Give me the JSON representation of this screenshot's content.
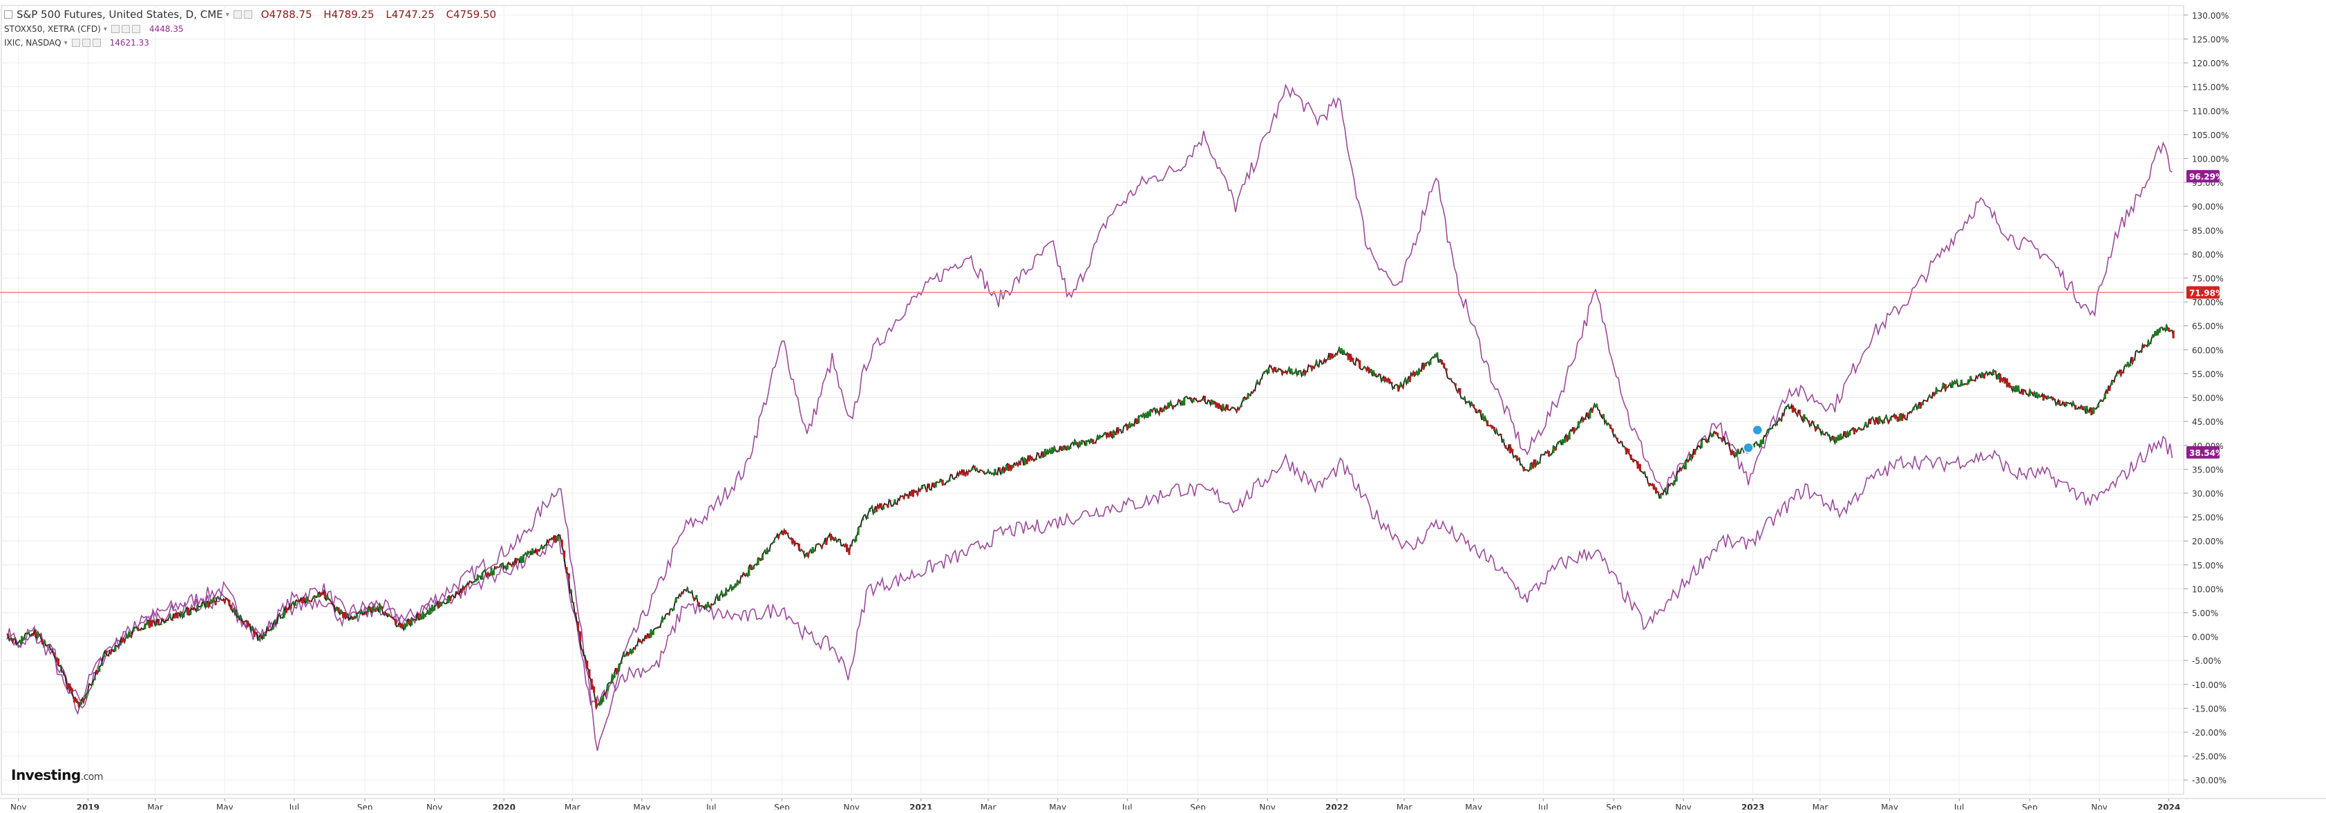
{
  "legend": {
    "main_title": "S&P 500 Futures, United States, D, CME",
    "ohlc": {
      "open": "O4788.75",
      "high": "H4789.25",
      "low": "L4747.25",
      "close": "C4759.50"
    },
    "series2_name": "STOXX50, XETRA (CFD)",
    "series2_value": "4448.35",
    "series3_name": "IXIC, NASDAQ",
    "series3_value": "14621.33"
  },
  "logo": {
    "brand": "Investing",
    "domain": ".com"
  },
  "colors": {
    "main_line": "#1a1a1a",
    "candle_up": "#1e7d1e",
    "candle_down": "#b71c1c",
    "compare_series": "#9b4a9b",
    "price_line": "#f08080",
    "badge_price": "#d32020",
    "badge_compare": "#8e1e8e",
    "grid": "#eeeeee",
    "marker": "#2e9fdc"
  },
  "chart_data": {
    "type": "line",
    "x_tick_labels": [
      "Nov",
      "2019",
      "Mar",
      "May",
      "Jul",
      "Sep",
      "Nov",
      "2020",
      "Mar",
      "May",
      "Jul",
      "Sep",
      "Nov",
      "2021",
      "Mar",
      "May",
      "Jul",
      "Sep",
      "Nov",
      "2022",
      "Mar",
      "May",
      "Jul",
      "Sep",
      "Nov",
      "2023",
      "Mar",
      "May",
      "Jul",
      "Sep",
      "Nov",
      "2024"
    ],
    "x_tick_dates": [
      "2018-11-01",
      "2019-01-01",
      "2019-03-01",
      "2019-05-01",
      "2019-07-01",
      "2019-09-01",
      "2019-11-01",
      "2020-01-01",
      "2020-03-01",
      "2020-05-01",
      "2020-07-01",
      "2020-09-01",
      "2020-11-01",
      "2021-01-01",
      "2021-03-01",
      "2021-05-01",
      "2021-07-01",
      "2021-09-01",
      "2021-11-01",
      "2022-01-01",
      "2022-03-01",
      "2022-05-01",
      "2022-07-01",
      "2022-09-01",
      "2022-11-01",
      "2023-01-01",
      "2023-03-01",
      "2023-05-01",
      "2023-07-01",
      "2023-09-01",
      "2023-11-01",
      "2024-01-01"
    ],
    "y_unit": "%",
    "ylim": [
      -33,
      132
    ],
    "y_ticks": [
      -30,
      -25,
      -20,
      -15,
      -10,
      -5,
      0,
      5,
      10,
      15,
      20,
      25,
      30,
      35,
      40,
      45,
      50,
      55,
      60,
      65,
      70,
      75,
      80,
      85,
      90,
      95,
      100,
      105,
      110,
      115,
      120,
      125,
      130
    ],
    "series": [
      {
        "name": "S&P 500 Futures, United States, D, CME",
        "style": "candles",
        "x": [
          "2018-10-22",
          "2018-11-01",
          "2018-11-15",
          "2018-12-01",
          "2018-12-10",
          "2018-12-24",
          "2019-01-15",
          "2019-02-15",
          "2019-03-15",
          "2019-04-30",
          "2019-05-31",
          "2019-06-30",
          "2019-07-26",
          "2019-08-15",
          "2019-09-15",
          "2019-10-03",
          "2019-11-15",
          "2019-12-15",
          "2020-01-15",
          "2020-02-19",
          "2020-03-09",
          "2020-03-23",
          "2020-04-15",
          "2020-05-15",
          "2020-06-08",
          "2020-06-26",
          "2020-07-31",
          "2020-09-02",
          "2020-09-23",
          "2020-10-15",
          "2020-10-30",
          "2020-11-15",
          "2020-12-15",
          "2021-01-15",
          "2021-02-15",
          "2021-03-04",
          "2021-04-15",
          "2021-05-12",
          "2021-06-15",
          "2021-07-15",
          "2021-08-15",
          "2021-09-02",
          "2021-10-04",
          "2021-11-02",
          "2021-12-01",
          "2022-01-03",
          "2022-02-01",
          "2022-02-24",
          "2022-03-29",
          "2022-04-15",
          "2022-05-20",
          "2022-06-16",
          "2022-07-15",
          "2022-08-16",
          "2022-09-15",
          "2022-10-12",
          "2022-11-15",
          "2022-11-30",
          "2022-12-15",
          "2023-01-05",
          "2023-02-02",
          "2023-03-13",
          "2023-04-15",
          "2023-05-15",
          "2023-06-15",
          "2023-07-31",
          "2023-08-18",
          "2023-09-15",
          "2023-10-27",
          "2023-11-15",
          "2023-12-15",
          "2023-12-27",
          "2024-01-05"
        ],
        "values": [
          0,
          -1,
          1,
          -3,
          -8,
          -15,
          -4,
          2,
          4,
          8,
          -0.5,
          7,
          9,
          4,
          6,
          2,
          8,
          13,
          16,
          21,
          -2,
          -15,
          -4,
          2,
          10,
          6,
          13,
          22,
          17,
          21,
          18,
          26,
          29,
          32,
          35,
          34,
          38,
          40,
          42,
          46,
          49,
          50,
          47,
          56,
          55,
          60,
          55,
          52,
          59,
          52,
          43,
          35,
          40,
          48,
          38,
          29,
          40,
          43,
          38,
          40,
          48,
          41,
          45,
          46,
          52,
          55,
          52,
          50,
          47,
          54,
          62,
          65,
          63
        ]
      },
      {
        "name": "IXIC, NASDAQ",
        "style": "line",
        "x": [
          "2018-10-22",
          "2018-11-01",
          "2018-11-15",
          "2018-12-01",
          "2018-12-10",
          "2018-12-24",
          "2019-01-15",
          "2019-02-15",
          "2019-03-15",
          "2019-04-30",
          "2019-05-31",
          "2019-06-30",
          "2019-07-26",
          "2019-08-15",
          "2019-09-15",
          "2019-10-03",
          "2019-11-15",
          "2019-12-15",
          "2020-01-15",
          "2020-02-19",
          "2020-03-09",
          "2020-03-23",
          "2020-04-15",
          "2020-05-15",
          "2020-06-08",
          "2020-06-26",
          "2020-07-31",
          "2020-09-02",
          "2020-09-23",
          "2020-10-15",
          "2020-10-30",
          "2020-11-15",
          "2020-12-15",
          "2021-01-15",
          "2021-02-12",
          "2021-03-08",
          "2021-04-26",
          "2021-05-12",
          "2021-06-15",
          "2021-07-15",
          "2021-08-15",
          "2021-09-07",
          "2021-10-04",
          "2021-11-19",
          "2021-12-15",
          "2022-01-03",
          "2022-01-27",
          "2022-02-24",
          "2022-03-29",
          "2022-04-15",
          "2022-05-20",
          "2022-06-16",
          "2022-07-15",
          "2022-08-16",
          "2022-09-15",
          "2022-10-13",
          "2022-11-15",
          "2022-11-30",
          "2022-12-28",
          "2023-01-05",
          "2023-02-02",
          "2023-03-13",
          "2023-04-15",
          "2023-05-15",
          "2023-06-15",
          "2023-07-19",
          "2023-08-18",
          "2023-09-15",
          "2023-10-26",
          "2023-11-15",
          "2023-12-15",
          "2023-12-27",
          "2024-01-05"
        ],
        "values": [
          1,
          -2,
          0,
          -4,
          -10,
          -16,
          -4,
          3,
          6,
          10,
          -0.5,
          8,
          10,
          5,
          7,
          3,
          10,
          15,
          20,
          32,
          2,
          -25,
          -4,
          10,
          23,
          25,
          35,
          62,
          42,
          58,
          44,
          58,
          68,
          75,
          80,
          70,
          82,
          70,
          88,
          95,
          98,
          105,
          90,
          115,
          108,
          112,
          82,
          72,
          97,
          75,
          52,
          38,
          50,
          72,
          45,
          30,
          40,
          45,
          33,
          38,
          52,
          48,
          63,
          70,
          80,
          91,
          83,
          80,
          67,
          84,
          96,
          104,
          96
        ]
      },
      {
        "name": "STOXX50, XETRA (CFD)",
        "style": "line",
        "x": [
          "2018-10-22",
          "2018-11-01",
          "2018-11-15",
          "2018-12-01",
          "2018-12-10",
          "2018-12-24",
          "2019-01-15",
          "2019-02-15",
          "2019-03-15",
          "2019-04-30",
          "2019-05-31",
          "2019-06-30",
          "2019-07-26",
          "2019-08-15",
          "2019-09-15",
          "2019-10-03",
          "2019-11-15",
          "2019-12-15",
          "2020-01-15",
          "2020-02-19",
          "2020-03-09",
          "2020-03-18",
          "2020-04-15",
          "2020-05-15",
          "2020-06-08",
          "2020-06-26",
          "2020-07-31",
          "2020-09-02",
          "2020-09-23",
          "2020-10-15",
          "2020-10-30",
          "2020-11-15",
          "2020-12-15",
          "2021-01-15",
          "2021-02-15",
          "2021-03-15",
          "2021-04-15",
          "2021-05-15",
          "2021-06-15",
          "2021-07-15",
          "2021-08-13",
          "2021-09-15",
          "2021-10-04",
          "2021-11-17",
          "2021-12-15",
          "2022-01-05",
          "2022-02-01",
          "2022-03-07",
          "2022-03-29",
          "2022-04-15",
          "2022-05-20",
          "2022-06-16",
          "2022-07-15",
          "2022-08-16",
          "2022-09-29",
          "2022-10-15",
          "2022-11-15",
          "2022-12-05",
          "2022-12-20",
          "2023-01-05",
          "2023-02-15",
          "2023-03-20",
          "2023-04-15",
          "2023-05-15",
          "2023-06-15",
          "2023-07-31",
          "2023-08-18",
          "2023-09-15",
          "2023-10-27",
          "2023-11-15",
          "2023-12-15",
          "2023-12-27",
          "2024-01-05"
        ],
        "values": [
          0.5,
          -1,
          1,
          -3,
          -8,
          -13,
          -4,
          3,
          5,
          8,
          -0.5,
          6,
          8,
          3,
          6,
          3,
          8,
          12,
          15,
          20,
          -4,
          -15,
          -8,
          -6,
          7,
          5,
          4,
          6,
          0,
          -2,
          -8,
          10,
          12,
          15,
          18,
          22,
          23,
          25,
          27,
          28,
          31,
          30,
          27,
          37,
          31,
          36,
          26,
          18,
          24,
          21,
          15,
          8,
          15,
          18,
          2,
          6,
          15,
          20,
          19,
          21,
          31,
          26,
          33,
          37,
          36,
          38,
          34,
          34,
          28,
          32,
          39,
          41,
          38
        ]
      }
    ],
    "price_line": {
      "value": 71.98,
      "label": "71.98%"
    },
    "last_badges": [
      {
        "series": "IXIC, NASDAQ",
        "value": 96.29,
        "label": "96.29%"
      },
      {
        "series": "STOXX50, XETRA (CFD)",
        "value": 38.54,
        "label": "38.54%"
      }
    ],
    "event_markers": [
      "2022-12-28",
      "2023-01-05"
    ],
    "grid": true,
    "legend_position": "top-left"
  }
}
